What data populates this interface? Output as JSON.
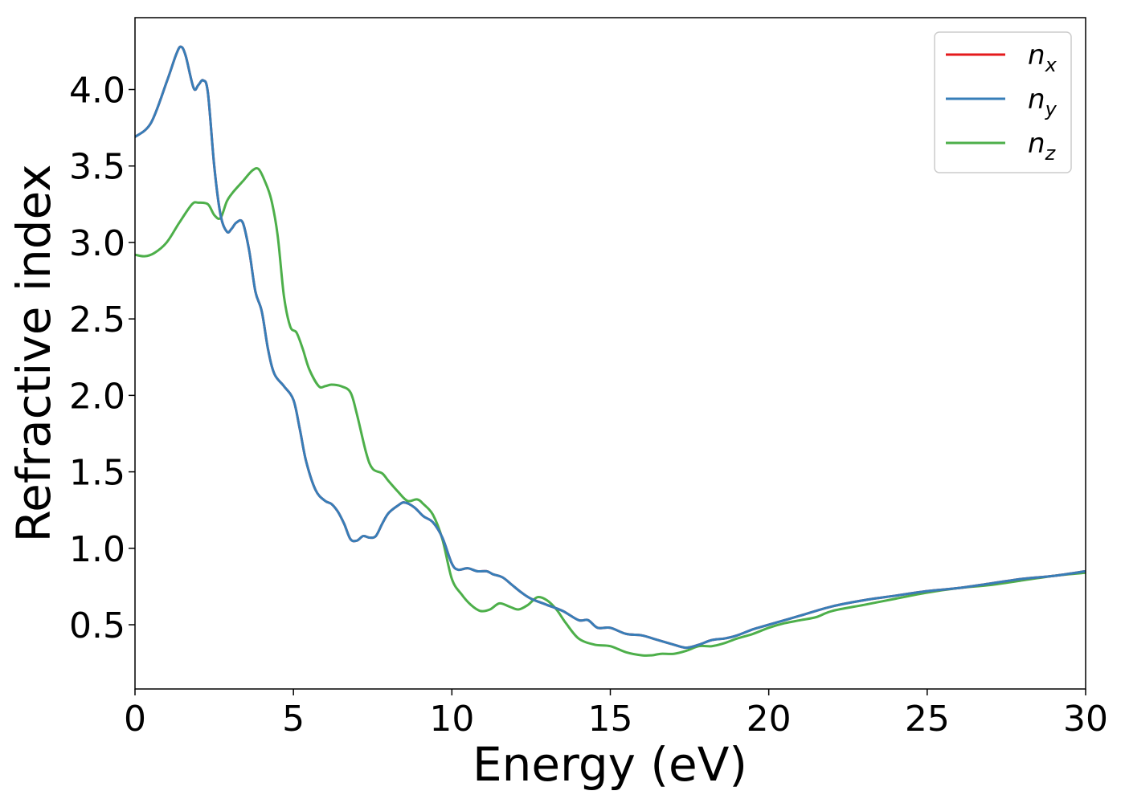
{
  "chart_data": {
    "type": "line",
    "title": "",
    "xlabel": "Energy (eV)",
    "ylabel": "Refractive index",
    "xlim": [
      0,
      30
    ],
    "ylim": [
      0.08,
      4.47
    ],
    "xticks": [
      0,
      5,
      10,
      15,
      20,
      25,
      30
    ],
    "xtick_labels": [
      "0",
      "5",
      "10",
      "15",
      "20",
      "25",
      "30"
    ],
    "yticks": [
      0.5,
      1.0,
      1.5,
      2.0,
      2.5,
      3.0,
      3.5,
      4.0
    ],
    "ytick_labels": [
      "0.5",
      "1.0",
      "1.5",
      "2.0",
      "2.5",
      "3.0",
      "3.5",
      "4.0"
    ],
    "grid": false,
    "legend_position": "top-right",
    "series": [
      {
        "name": "n",
        "subscript": "x",
        "color": "#e41a1c",
        "x": [
          0,
          0.5,
          1.0,
          1.3,
          1.45,
          1.6,
          1.85,
          2.0,
          2.15,
          2.3,
          2.5,
          2.7,
          2.9,
          3.05,
          3.2,
          3.4,
          3.6,
          3.8,
          4.0,
          4.2,
          4.4,
          4.7,
          5.0,
          5.2,
          5.4,
          5.7,
          6.0,
          6.2,
          6.4,
          6.6,
          6.8,
          7.0,
          7.2,
          7.4,
          7.6,
          7.8,
          8.0,
          8.3,
          8.5,
          8.8,
          9.1,
          9.4,
          9.7,
          10.0,
          10.2,
          10.5,
          10.8,
          11.1,
          11.3,
          11.6,
          11.9,
          12.2,
          12.5,
          13.0,
          13.5,
          14.0,
          14.3,
          14.6,
          15.0,
          15.5,
          16.0,
          16.5,
          17.0,
          17.4,
          17.8,
          18.2,
          18.6,
          19.0,
          19.5,
          20.0,
          21.0,
          22.0,
          23.0,
          24.0,
          25.0,
          26.0,
          27.0,
          28.0,
          29.0,
          30.0
        ],
        "values": [
          3.69,
          3.78,
          4.05,
          4.23,
          4.28,
          4.22,
          4.01,
          4.03,
          4.06,
          3.98,
          3.5,
          3.18,
          3.07,
          3.09,
          3.13,
          3.13,
          2.95,
          2.68,
          2.55,
          2.3,
          2.14,
          2.06,
          1.97,
          1.78,
          1.57,
          1.38,
          1.31,
          1.29,
          1.24,
          1.16,
          1.06,
          1.05,
          1.08,
          1.07,
          1.08,
          1.16,
          1.23,
          1.28,
          1.3,
          1.27,
          1.21,
          1.17,
          1.07,
          0.9,
          0.86,
          0.87,
          0.85,
          0.85,
          0.83,
          0.81,
          0.76,
          0.71,
          0.67,
          0.63,
          0.59,
          0.53,
          0.53,
          0.48,
          0.48,
          0.44,
          0.43,
          0.4,
          0.37,
          0.35,
          0.37,
          0.4,
          0.41,
          0.43,
          0.47,
          0.5,
          0.56,
          0.62,
          0.66,
          0.69,
          0.72,
          0.74,
          0.77,
          0.8,
          0.82,
          0.85
        ]
      },
      {
        "name": "n",
        "subscript": "y",
        "color": "#377eb8",
        "x": [
          0,
          0.5,
          1.0,
          1.3,
          1.45,
          1.6,
          1.85,
          2.0,
          2.15,
          2.3,
          2.5,
          2.7,
          2.9,
          3.05,
          3.2,
          3.4,
          3.6,
          3.8,
          4.0,
          4.2,
          4.4,
          4.7,
          5.0,
          5.2,
          5.4,
          5.7,
          6.0,
          6.2,
          6.4,
          6.6,
          6.8,
          7.0,
          7.2,
          7.4,
          7.6,
          7.8,
          8.0,
          8.3,
          8.5,
          8.8,
          9.1,
          9.4,
          9.7,
          10.0,
          10.2,
          10.5,
          10.8,
          11.1,
          11.3,
          11.6,
          11.9,
          12.2,
          12.5,
          13.0,
          13.5,
          14.0,
          14.3,
          14.6,
          15.0,
          15.5,
          16.0,
          16.5,
          17.0,
          17.4,
          17.8,
          18.2,
          18.6,
          19.0,
          19.5,
          20.0,
          21.0,
          22.0,
          23.0,
          24.0,
          25.0,
          26.0,
          27.0,
          28.0,
          29.0,
          30.0
        ],
        "values": [
          3.69,
          3.78,
          4.05,
          4.23,
          4.28,
          4.22,
          4.01,
          4.03,
          4.06,
          3.98,
          3.5,
          3.18,
          3.07,
          3.09,
          3.13,
          3.13,
          2.95,
          2.68,
          2.55,
          2.3,
          2.14,
          2.06,
          1.97,
          1.78,
          1.57,
          1.38,
          1.31,
          1.29,
          1.24,
          1.16,
          1.06,
          1.05,
          1.08,
          1.07,
          1.08,
          1.16,
          1.23,
          1.28,
          1.3,
          1.27,
          1.21,
          1.17,
          1.07,
          0.9,
          0.86,
          0.87,
          0.85,
          0.85,
          0.83,
          0.81,
          0.76,
          0.71,
          0.67,
          0.63,
          0.59,
          0.53,
          0.53,
          0.48,
          0.48,
          0.44,
          0.43,
          0.4,
          0.37,
          0.35,
          0.37,
          0.4,
          0.41,
          0.43,
          0.47,
          0.5,
          0.56,
          0.62,
          0.66,
          0.69,
          0.72,
          0.74,
          0.77,
          0.8,
          0.82,
          0.85
        ]
      },
      {
        "name": "n",
        "subscript": "z",
        "color": "#4daf4a",
        "x": [
          0,
          0.3,
          0.6,
          1.0,
          1.4,
          1.8,
          2.0,
          2.3,
          2.5,
          2.7,
          2.9,
          3.1,
          3.4,
          3.7,
          3.9,
          4.1,
          4.3,
          4.5,
          4.7,
          4.9,
          5.1,
          5.3,
          5.5,
          5.8,
          6.0,
          6.2,
          6.5,
          6.8,
          7.0,
          7.3,
          7.5,
          7.8,
          8.0,
          8.3,
          8.6,
          8.9,
          9.1,
          9.4,
          9.7,
          10.0,
          10.3,
          10.6,
          10.9,
          11.2,
          11.5,
          11.8,
          12.1,
          12.4,
          12.7,
          13.0,
          13.3,
          13.6,
          14.0,
          14.5,
          15.0,
          15.5,
          16.0,
          16.3,
          16.6,
          17.0,
          17.4,
          17.8,
          18.2,
          18.6,
          19.0,
          19.5,
          20.0,
          20.5,
          21.0,
          21.5,
          22.0,
          23.0,
          24.0,
          25.0,
          26.0,
          27.0,
          28.0,
          29.0,
          30.0
        ],
        "values": [
          2.92,
          2.91,
          2.93,
          3.0,
          3.13,
          3.25,
          3.26,
          3.25,
          3.18,
          3.16,
          3.27,
          3.33,
          3.4,
          3.47,
          3.48,
          3.4,
          3.28,
          3.05,
          2.65,
          2.45,
          2.41,
          2.3,
          2.17,
          2.06,
          2.06,
          2.07,
          2.06,
          2.02,
          1.88,
          1.62,
          1.52,
          1.49,
          1.44,
          1.37,
          1.31,
          1.32,
          1.29,
          1.22,
          1.06,
          0.8,
          0.7,
          0.63,
          0.59,
          0.6,
          0.64,
          0.62,
          0.6,
          0.63,
          0.68,
          0.66,
          0.6,
          0.51,
          0.41,
          0.37,
          0.36,
          0.32,
          0.3,
          0.3,
          0.31,
          0.31,
          0.33,
          0.36,
          0.36,
          0.38,
          0.41,
          0.44,
          0.48,
          0.51,
          0.53,
          0.55,
          0.59,
          0.63,
          0.67,
          0.71,
          0.74,
          0.76,
          0.79,
          0.82,
          0.84
        ]
      }
    ]
  }
}
